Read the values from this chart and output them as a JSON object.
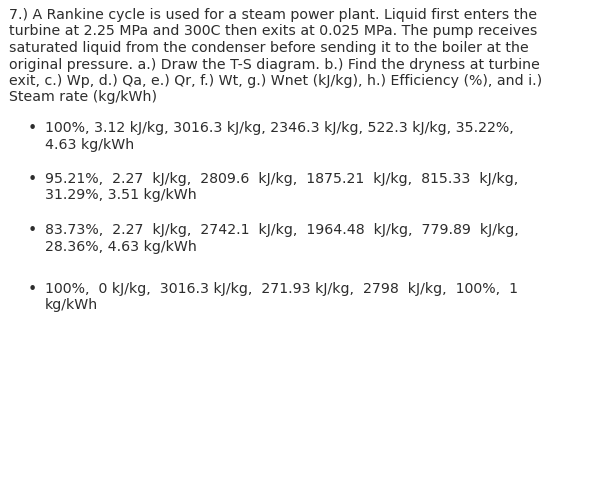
{
  "background_color": "#ffffff",
  "text_color": "#2d2d2d",
  "title_lines": [
    "7.) A Rankine cycle is used for a steam power plant. Liquid first enters the",
    "turbine at 2.25 MPa and 300C then exits at 0.025 MPa. The pump receives",
    "saturated liquid from the condenser before sending it to the boiler at the",
    "original pressure. a.) Draw the T-S diagram. b.) Find the dryness at turbine",
    "exit, c.) Wp, d.) Qa, e.) Qr, f.) Wt, g.) Wnet (kJ/kg), h.) Efficiency (%), and i.)",
    "Steam rate (kg/kWh)"
  ],
  "bullet_items": [
    {
      "line1": "100%, 3.12 kJ/kg, 3016.3 kJ/kg, 2346.3 kJ/kg, 522.3 kJ/kg, 35.22%,",
      "line2": "4.63 kg/kWh"
    },
    {
      "line1": "95.21%,  2.27  kJ/kg,  2809.6  kJ/kg,  1875.21  kJ/kg,  815.33  kJ/kg,",
      "line2": "31.29%, 3.51 kg/kWh"
    },
    {
      "line1": "83.73%,  2.27  kJ/kg,  2742.1  kJ/kg,  1964.48  kJ/kg,  779.89  kJ/kg,",
      "line2": "28.36%, 4.63 kg/kWh"
    },
    {
      "line1": "100%,  0 kJ/kg,  3016.3 kJ/kg,  271.93 kJ/kg,  2798  kJ/kg,  100%,  1",
      "line2": "kg/kWh"
    }
  ],
  "font_family": "DejaVu Sans",
  "title_fontsize": 10.2,
  "bullet_fontsize": 10.2,
  "figwidth": 6.11,
  "figheight": 4.82,
  "dpi": 100
}
